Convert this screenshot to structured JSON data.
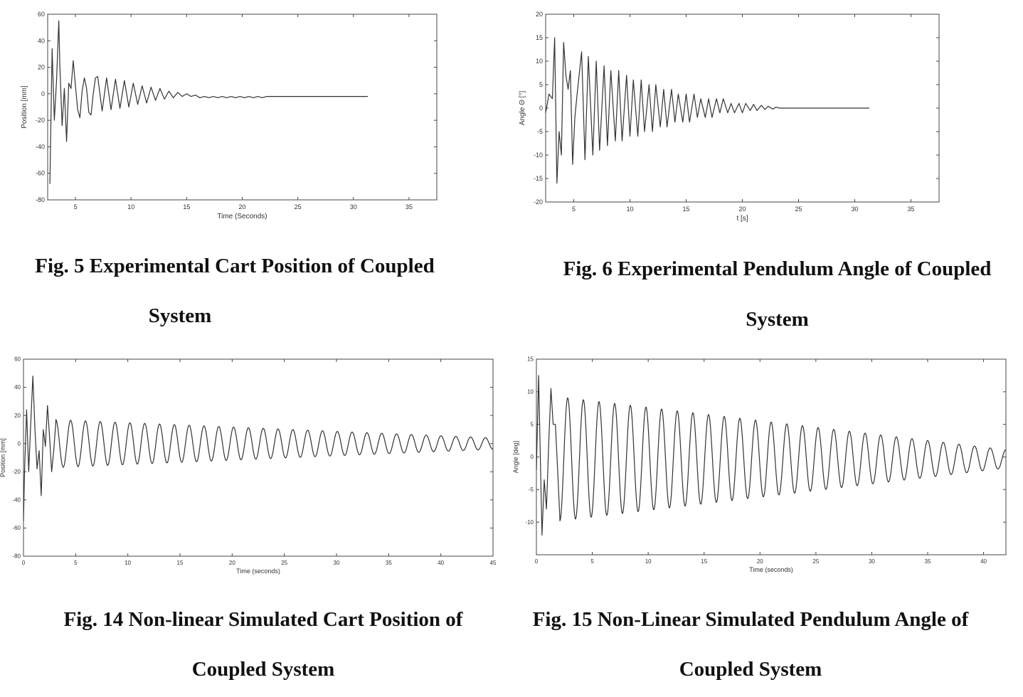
{
  "chart_data": [
    {
      "type": "line",
      "caption_line1": "Fig. 5 Experimental Cart Position of Coupled",
      "caption_line2": "System",
      "xlabel": "Time (Seconds)",
      "ylabel": "Position [mm]",
      "xlim": [
        2.5,
        37.5
      ],
      "ylim": [
        -80,
        60
      ],
      "xticks": [
        5,
        10,
        15,
        20,
        25,
        30,
        35
      ],
      "yticks": [
        -80,
        -60,
        -40,
        -20,
        0,
        20,
        40,
        60
      ],
      "series": [
        {
          "x": [
            2.7,
            2.9,
            3.1,
            3.3,
            3.5,
            3.6,
            3.8,
            4.0,
            4.2,
            4.4,
            4.6,
            4.8,
            5.0,
            5.2,
            5.4,
            5.6,
            5.8,
            6.0,
            6.2,
            6.4,
            6.6,
            6.8,
            7.0,
            7.4,
            7.8,
            8.2,
            8.6,
            9.0,
            9.4,
            9.8,
            10.2,
            10.6,
            11.0,
            11.4,
            11.8,
            12.2,
            12.6,
            13.0,
            13.4,
            13.8,
            14.2,
            14.6,
            15.0,
            15.4,
            15.8,
            16.2,
            16.6,
            17.0,
            17.4,
            17.8,
            18.2,
            18.6,
            19.0,
            19.4,
            19.8,
            20.2,
            20.6,
            21.0,
            21.4,
            21.8,
            22.2,
            23,
            25,
            28,
            31.3
          ],
          "y": [
            -68,
            34,
            -20,
            10,
            55,
            20,
            -24,
            4,
            -36,
            8,
            4,
            25,
            6,
            -12,
            -18,
            2,
            12,
            4,
            -14,
            -16,
            0,
            12,
            13,
            -13,
            12,
            -12,
            11,
            -11,
            10,
            -10,
            8,
            -8,
            6,
            -7,
            5,
            -5,
            4,
            -4,
            2,
            -3,
            1,
            -2,
            0,
            -2,
            -1,
            -3,
            -2,
            -3,
            -2,
            -3,
            -2,
            -3,
            -2,
            -3,
            -2,
            -3,
            -2,
            -3,
            -2,
            -3,
            -2,
            -2,
            -2,
            -2,
            -2
          ]
        }
      ]
    },
    {
      "type": "line",
      "caption_line1": "Fig. 6 Experimental Pendulum Angle of Coupled",
      "caption_line2": "System",
      "xlabel": "t [s]",
      "ylabel": "Angle Θ [°]",
      "xlim": [
        2.5,
        37.5
      ],
      "ylim": [
        -20,
        20
      ],
      "xticks": [
        5,
        10,
        15,
        20,
        25,
        30,
        35
      ],
      "yticks": [
        -20,
        -15,
        -10,
        -5,
        0,
        5,
        10,
        15,
        20
      ],
      "series": [
        {
          "x": [
            2.5,
            2.8,
            3.1,
            3.3,
            3.5,
            3.7,
            3.9,
            4.1,
            4.3,
            4.5,
            4.7,
            4.9,
            5.1,
            5.3,
            5.7,
            6.0,
            6.3,
            6.7,
            7.0,
            7.3,
            7.7,
            8.0,
            8.3,
            8.7,
            9.0,
            9.3,
            9.7,
            10.0,
            10.3,
            10.7,
            11.0,
            11.3,
            11.7,
            12.0,
            12.3,
            12.7,
            13.0,
            13.3,
            13.7,
            14.0,
            14.3,
            14.7,
            15.0,
            15.3,
            15.7,
            16.0,
            16.3,
            16.7,
            17.0,
            17.3,
            17.7,
            18.0,
            18.3,
            18.7,
            19.0,
            19.3,
            19.7,
            20.0,
            20.3,
            20.7,
            21.0,
            21.3,
            21.7,
            22.0,
            22.3,
            22.7,
            23.0,
            23.3,
            23.7,
            24.0,
            24.3,
            24.7,
            25.0,
            25.3,
            25.7,
            26.0,
            31.3
          ],
          "y": [
            -1,
            3,
            2,
            15,
            -16,
            -5,
            -10,
            14,
            7,
            4,
            8,
            -12,
            -2,
            3,
            12,
            -11,
            11,
            -10,
            10,
            -9,
            9,
            -8,
            8,
            -7,
            8,
            -7,
            7,
            -6,
            6,
            -6,
            6,
            -5,
            5,
            -5,
            5,
            -4,
            4,
            -4,
            4,
            -3,
            3,
            -3,
            3,
            -3,
            3,
            -2,
            2,
            -2,
            2,
            -2,
            2,
            -1,
            2,
            -1,
            1,
            -1,
            1,
            -1,
            1,
            -0.5,
            0.8,
            -0.5,
            0.6,
            -0.3,
            0.4,
            -0.2,
            0.2,
            0,
            0,
            0,
            0,
            0,
            0,
            0,
            0,
            0,
            0
          ]
        }
      ]
    },
    {
      "type": "line",
      "caption_line1": "Fig. 14 Non-linear Simulated Cart Position of",
      "caption_line2": "Coupled System",
      "xlabel": "Time (seconds)",
      "ylabel": "Position [mm]",
      "xlim": [
        0,
        45
      ],
      "ylim": [
        -80,
        60
      ],
      "xticks": [
        0,
        5,
        10,
        15,
        20,
        25,
        30,
        35,
        40,
        45
      ],
      "yticks": [
        -80,
        -60,
        -40,
        -20,
        0,
        20,
        40,
        60
      ],
      "osc": {
        "spikes": [
          [
            0,
            -55
          ],
          [
            0.1,
            -20
          ],
          [
            0.3,
            24
          ],
          [
            0.5,
            -20
          ],
          [
            0.7,
            15
          ],
          [
            0.9,
            48
          ],
          [
            1.1,
            10
          ],
          [
            1.3,
            -18
          ],
          [
            1.5,
            -5
          ],
          [
            1.7,
            -37
          ],
          [
            1.9,
            10
          ],
          [
            2.1,
            -2
          ],
          [
            2.3,
            27
          ],
          [
            2.5,
            5
          ],
          [
            2.7,
            -20
          ],
          [
            2.9,
            -5
          ],
          [
            3.1,
            15
          ]
        ],
        "t_start": 3.1,
        "period": 1.42,
        "amp_start": 17,
        "amp_end": 4,
        "offset": 0,
        "t_end": 45,
        "phase": 1.5708
      }
    },
    {
      "type": "line",
      "caption_line1": "Fig. 15 Non-Linear Simulated Pendulum Angle of",
      "caption_line2": "Coupled System",
      "xlabel": "Time (seconds)",
      "ylabel": "Angle [deg]",
      "xlim": [
        0,
        42
      ],
      "ylim": [
        -15,
        15
      ],
      "xticks": [
        0,
        5,
        10,
        15,
        20,
        25,
        30,
        35,
        40
      ],
      "yticks": [
        -10,
        -5,
        0,
        5,
        10,
        15
      ],
      "osc": {
        "spikes": [
          [
            0,
            -2
          ],
          [
            0.2,
            12.5
          ],
          [
            0.35,
            0
          ],
          [
            0.5,
            -12
          ],
          [
            0.7,
            -3.5
          ],
          [
            0.9,
            -8
          ],
          [
            1.1,
            2
          ],
          [
            1.3,
            10.5
          ],
          [
            1.5,
            5
          ],
          [
            1.7,
            5
          ],
          [
            1.9,
            -2
          ],
          [
            2.1,
            -9.5
          ]
        ],
        "t_start": 2.1,
        "period": 1.4,
        "amp_start": 9.5,
        "amp_end": 1.4,
        "offset": -0.3,
        "t_end": 42,
        "phase": -1.5708
      }
    }
  ]
}
